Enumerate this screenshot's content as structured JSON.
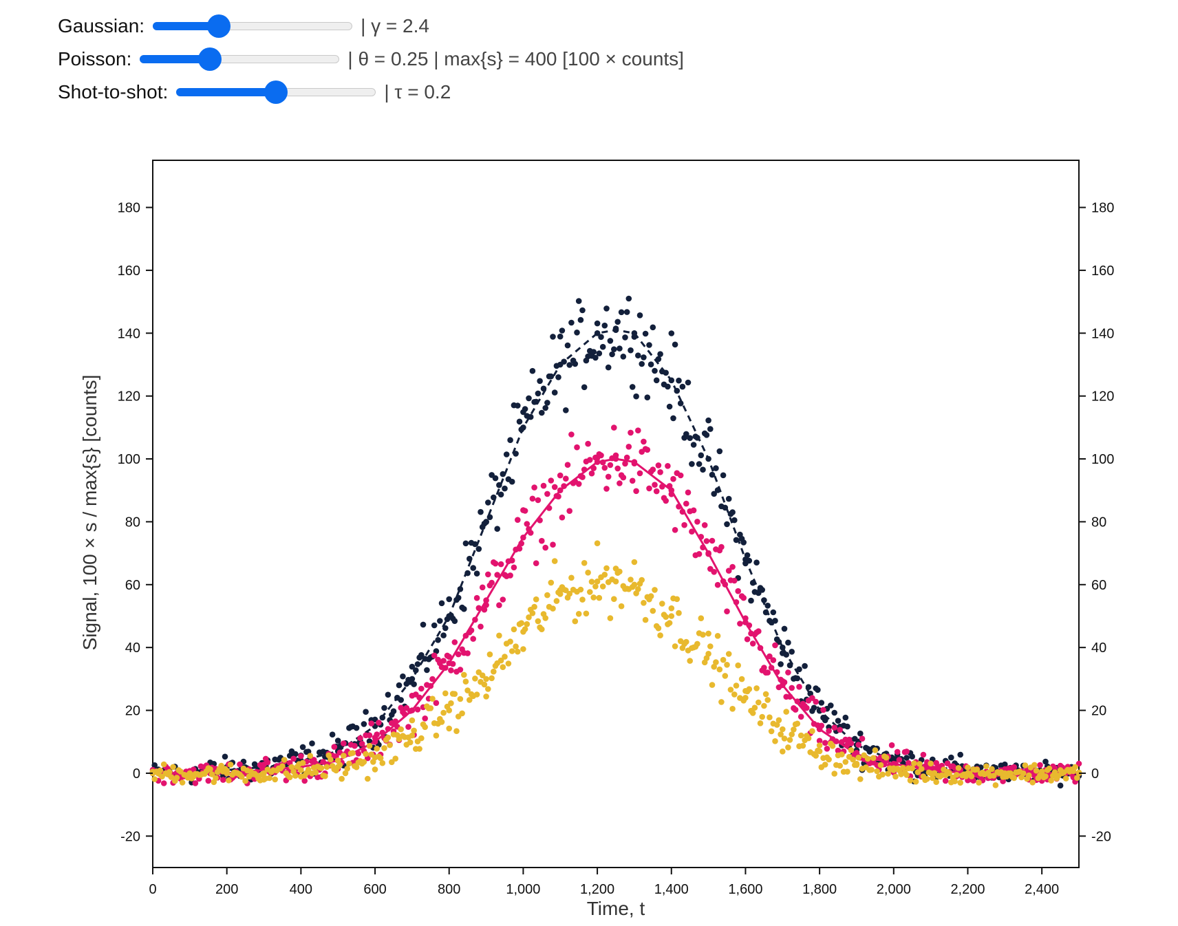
{
  "controls": [
    {
      "label": "Gaussian:",
      "value": 0.33,
      "readout": "| γ = 2.4"
    },
    {
      "label": "Poisson:",
      "value": 0.35,
      "readout": "| θ = 0.25 | max{s} = 400 [100 × counts]"
    },
    {
      "label": "Shot-to-shot:",
      "value": 0.5,
      "readout": "| τ = 0.2"
    }
  ],
  "colors": {
    "accent": "#0a6cf0",
    "navy": "#13203b",
    "magenta": "#e2136e",
    "gold": "#e8b92e"
  },
  "chart_data": {
    "type": "scatter",
    "xlabel": "Time, t",
    "ylabel": "Signal, 100 × s / max{s} [counts]",
    "xlim": [
      0,
      2500
    ],
    "ylim": [
      -30,
      195
    ],
    "xticks": [
      0,
      200,
      400,
      600,
      800,
      1000,
      1200,
      1400,
      1600,
      1800,
      2000,
      2200,
      2400
    ],
    "xtick_labels": [
      "0",
      "200",
      "400",
      "600",
      "800",
      "1,000",
      "1,200",
      "1,400",
      "1,600",
      "1,800",
      "2,000",
      "2,200",
      "2,400"
    ],
    "yticks": [
      -20,
      0,
      20,
      40,
      60,
      80,
      100,
      120,
      140,
      160,
      180
    ],
    "ytick_labels": [
      "-20",
      "0",
      "20",
      "40",
      "60",
      "80",
      "100",
      "120",
      "140",
      "160",
      "180"
    ],
    "grid": false,
    "legend": "none",
    "series": [
      {
        "type": "scatter",
        "color": "#13203b",
        "x": [
          0,
          100,
          200,
          300,
          400,
          500,
          600,
          700,
          800,
          900,
          1000,
          1100,
          1200,
          1250,
          1300,
          1400,
          1500,
          1600,
          1700,
          1800,
          1900,
          2000,
          2100,
          2200,
          2300,
          2400,
          2500
        ],
        "y": [
          0,
          0,
          1,
          2,
          4,
          7,
          15,
          30,
          50,
          80,
          110,
          130,
          140,
          141,
          140,
          125,
          100,
          68,
          40,
          20,
          9,
          4,
          2,
          1,
          0,
          0,
          0
        ]
      },
      {
        "type": "line",
        "dashed": true,
        "color": "#13203b",
        "x": [
          0,
          100,
          200,
          300,
          400,
          500,
          600,
          700,
          800,
          900,
          1000,
          1100,
          1200,
          1250,
          1300,
          1400,
          1500,
          1600,
          1700,
          1800,
          1900,
          2000,
          2100,
          2200,
          2300,
          2400,
          2500
        ],
        "y": [
          0,
          0,
          1,
          2,
          4,
          7,
          15,
          30,
          50,
          80,
          110,
          130,
          140,
          141,
          140,
          125,
          100,
          68,
          40,
          20,
          9,
          4,
          2,
          1,
          0,
          0,
          0
        ]
      },
      {
        "type": "scatter",
        "color": "#e2136e",
        "x": [
          0,
          100,
          200,
          300,
          400,
          500,
          600,
          700,
          800,
          900,
          1000,
          1100,
          1200,
          1250,
          1300,
          1400,
          1500,
          1600,
          1700,
          1800,
          1900,
          2000,
          2100,
          2200,
          2300,
          2400,
          2500
        ],
        "y": [
          0,
          0,
          0,
          1,
          2,
          4,
          10,
          20,
          35,
          55,
          75,
          90,
          99,
          100,
          99,
          90,
          70,
          48,
          28,
          14,
          6,
          3,
          1,
          0,
          0,
          0,
          0
        ]
      },
      {
        "type": "line",
        "dashed": false,
        "color": "#e2136e",
        "x": [
          0,
          100,
          200,
          300,
          400,
          500,
          600,
          700,
          800,
          900,
          1000,
          1100,
          1200,
          1250,
          1300,
          1400,
          1500,
          1600,
          1700,
          1800,
          1900,
          2000,
          2100,
          2200,
          2300,
          2400,
          2500
        ],
        "y": [
          0,
          0,
          0,
          1,
          2,
          4,
          10,
          20,
          35,
          55,
          75,
          90,
          99,
          100,
          99,
          90,
          70,
          48,
          28,
          14,
          6,
          3,
          1,
          0,
          0,
          0,
          0
        ]
      },
      {
        "type": "scatter",
        "color": "#e8b92e",
        "x": [
          0,
          100,
          200,
          300,
          400,
          500,
          600,
          700,
          800,
          900,
          1000,
          1100,
          1200,
          1250,
          1300,
          1400,
          1500,
          1600,
          1700,
          1800,
          1900,
          2000,
          2100,
          2200,
          2300,
          2400,
          2500
        ],
        "y": [
          0,
          0,
          0,
          0,
          1,
          2,
          5,
          12,
          20,
          30,
          45,
          57,
          61,
          61,
          60,
          50,
          38,
          24,
          14,
          7,
          3,
          1,
          0,
          0,
          0,
          0,
          0
        ]
      }
    ]
  }
}
